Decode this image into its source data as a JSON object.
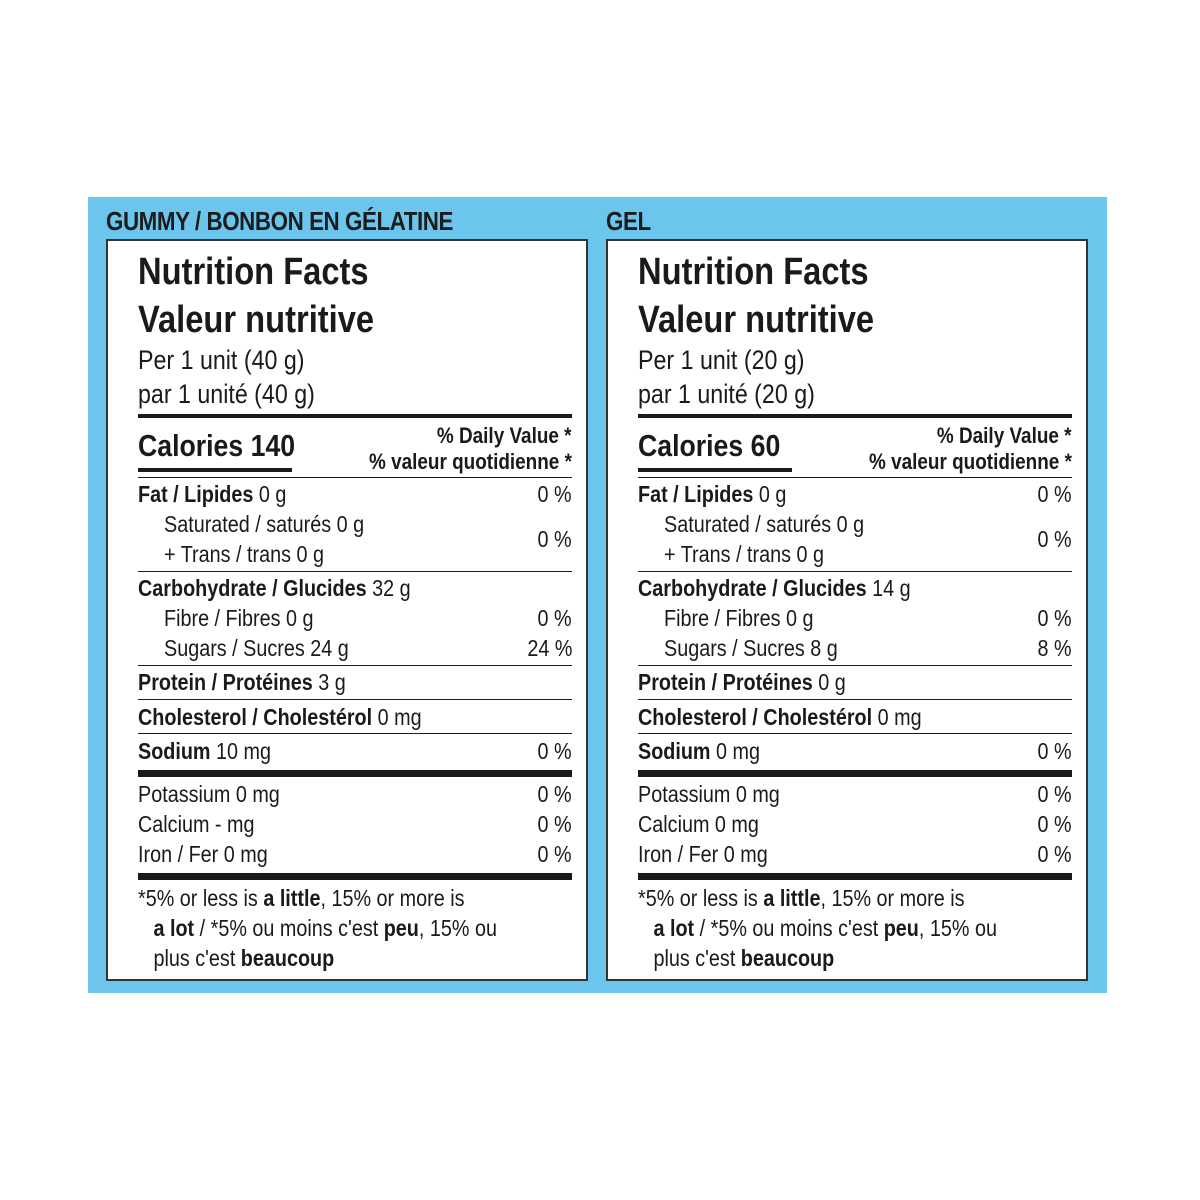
{
  "panels": [
    {
      "product": "GUMMY / BONBON EN GÉLATINE",
      "heading_en": "Nutrition Facts",
      "heading_fr": "Valeur nutritive",
      "serving_en": "Per 1 unit (40 g)",
      "serving_fr": "par 1 unité (40 g)",
      "calories": "Calories 140",
      "dv_en": "% Daily Value *",
      "dv_fr": "% valeur quotidienne *",
      "fat_label": "Fat / Lipides",
      "fat_amount": "0 g",
      "fat_pct": "0 %",
      "sat": "Saturated / saturés 0 g",
      "trans": "+ Trans / trans 0 g",
      "sat_trans_pct": "0 %",
      "carb_label": "Carbohydrate / Glucides",
      "carb_amount": "32 g",
      "fibre": "Fibre / Fibres 0 g",
      "fibre_pct": "0 %",
      "sugars": "Sugars / Sucres 24 g",
      "sugars_pct": "24 %",
      "protein_label": "Protein / Protéines",
      "protein_amount": "3 g",
      "chol_label": "Cholesterol / Cholestérol",
      "chol_amount": "0 mg",
      "sodium_label": "Sodium",
      "sodium_amount": "10 mg",
      "sodium_pct": "0 %",
      "potassium": "Potassium 0 mg",
      "potassium_pct": "0 %",
      "calcium": "Calcium - mg",
      "calcium_pct": "0 %",
      "iron": "Iron / Fer 0 mg",
      "iron_pct": "0 %",
      "foot_1a": "*5% or less is ",
      "foot_1b": "a little",
      "foot_1c": ", 15% or more is",
      "foot_2a": "a lot",
      "foot_2b": " / *5% ou moins c'est ",
      "foot_2c": "peu",
      "foot_2d": ", 15% ou",
      "foot_3a": "plus c'est ",
      "foot_3b": "beaucoup"
    },
    {
      "product": "GEL",
      "heading_en": "Nutrition Facts",
      "heading_fr": "Valeur nutritive",
      "serving_en": "Per 1 unit (20 g)",
      "serving_fr": "par 1 unité (20 g)",
      "calories": "Calories 60",
      "dv_en": "% Daily Value *",
      "dv_fr": "% valeur quotidienne *",
      "fat_label": "Fat / Lipides",
      "fat_amount": "0 g",
      "fat_pct": "0 %",
      "sat": "Saturated / saturés 0 g",
      "trans": "+ Trans / trans 0 g",
      "sat_trans_pct": "0 %",
      "carb_label": "Carbohydrate / Glucides",
      "carb_amount": "14 g",
      "fibre": "Fibre / Fibres 0 g",
      "fibre_pct": "0 %",
      "sugars": "Sugars / Sucres 8 g",
      "sugars_pct": "8 %",
      "protein_label": "Protein / Protéines",
      "protein_amount": "0 g",
      "chol_label": "Cholesterol / Cholestérol",
      "chol_amount": "0 mg",
      "sodium_label": "Sodium",
      "sodium_amount": "0 mg",
      "sodium_pct": "0 %",
      "potassium": "Potassium 0 mg",
      "potassium_pct": "0 %",
      "calcium": "Calcium 0 mg",
      "calcium_pct": "0 %",
      "iron": "Iron / Fer 0 mg",
      "iron_pct": "0 %",
      "foot_1a": "*5% or less is ",
      "foot_1b": "a little",
      "foot_1c": ", 15% or more is",
      "foot_2a": "a lot",
      "foot_2b": " / *5% ou moins c'est ",
      "foot_2c": "peu",
      "foot_2d": ", 15% ou",
      "foot_3a": "plus c'est ",
      "foot_3b": "beaucoup"
    }
  ],
  "colors": {
    "band": "#6cc5ec",
    "panel": "#ffffff",
    "ink": "#1a1a1a"
  }
}
